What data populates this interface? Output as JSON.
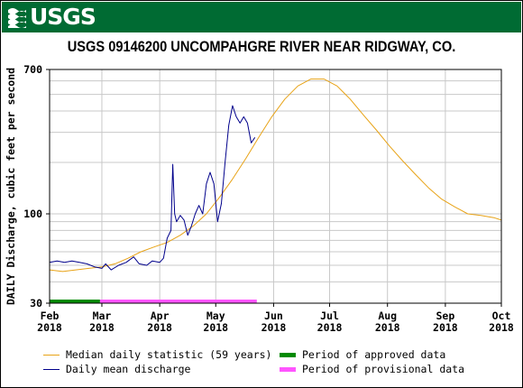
{
  "header": {
    "logo_text": "USGS"
  },
  "chart_data": {
    "type": "line",
    "title": "USGS 09146200 UNCOMPAHGRE RIVER NEAR RIDGWAY, CO.",
    "ylabel": "DAILY Discharge, cubic feet per second",
    "xlabel": "",
    "y_scale": "log",
    "ylim": [
      30,
      700
    ],
    "y_ticks": [
      {
        "value": 30,
        "label": "30"
      },
      {
        "value": 100,
        "label": "100"
      },
      {
        "value": 700,
        "label": "700"
      }
    ],
    "x_ticks": [
      {
        "date": "2018-02-01",
        "month": "Feb",
        "year": "2018"
      },
      {
        "date": "2018-03-01",
        "month": "Mar",
        "year": "2018"
      },
      {
        "date": "2018-04-01",
        "month": "Apr",
        "year": "2018"
      },
      {
        "date": "2018-05-01",
        "month": "May",
        "year": "2018"
      },
      {
        "date": "2018-06-01",
        "month": "Jun",
        "year": "2018"
      },
      {
        "date": "2018-07-01",
        "month": "Jul",
        "year": "2018"
      },
      {
        "date": "2018-08-01",
        "month": "Aug",
        "year": "2018"
      },
      {
        "date": "2018-09-01",
        "month": "Sep",
        "year": "2018"
      },
      {
        "date": "2018-10-01",
        "month": "Oct",
        "year": "2018"
      }
    ],
    "xlim": [
      "2018-02-01",
      "2018-10-01"
    ],
    "grid": true,
    "series": [
      {
        "name": "Median daily statistic (59 years)",
        "color": "#e8a317",
        "points": [
          [
            "2018-02-01",
            47
          ],
          [
            "2018-02-08",
            46
          ],
          [
            "2018-02-15",
            47
          ],
          [
            "2018-02-22",
            48
          ],
          [
            "2018-03-01",
            49
          ],
          [
            "2018-03-08",
            51
          ],
          [
            "2018-03-15",
            55
          ],
          [
            "2018-03-22",
            60
          ],
          [
            "2018-03-29",
            64
          ],
          [
            "2018-04-05",
            68
          ],
          [
            "2018-04-12",
            75
          ],
          [
            "2018-04-19",
            85
          ],
          [
            "2018-04-26",
            100
          ],
          [
            "2018-05-03",
            125
          ],
          [
            "2018-05-10",
            160
          ],
          [
            "2018-05-17",
            210
          ],
          [
            "2018-05-24",
            280
          ],
          [
            "2018-05-31",
            370
          ],
          [
            "2018-06-07",
            470
          ],
          [
            "2018-06-14",
            560
          ],
          [
            "2018-06-21",
            615
          ],
          [
            "2018-06-28",
            615
          ],
          [
            "2018-07-05",
            560
          ],
          [
            "2018-07-12",
            470
          ],
          [
            "2018-07-19",
            380
          ],
          [
            "2018-07-26",
            310
          ],
          [
            "2018-08-02",
            250
          ],
          [
            "2018-08-09",
            205
          ],
          [
            "2018-08-16",
            170
          ],
          [
            "2018-08-23",
            142
          ],
          [
            "2018-08-30",
            122
          ],
          [
            "2018-09-06",
            110
          ],
          [
            "2018-09-13",
            100
          ],
          [
            "2018-09-20",
            98
          ],
          [
            "2018-09-27",
            95
          ],
          [
            "2018-10-01",
            92
          ]
        ]
      },
      {
        "name": "Daily mean discharge",
        "color": "#00008b",
        "points": [
          [
            "2018-02-01",
            52
          ],
          [
            "2018-02-05",
            53
          ],
          [
            "2018-02-09",
            52
          ],
          [
            "2018-02-13",
            53
          ],
          [
            "2018-02-17",
            52
          ],
          [
            "2018-02-21",
            51
          ],
          [
            "2018-02-25",
            49
          ],
          [
            "2018-03-01",
            48
          ],
          [
            "2018-03-03",
            51
          ],
          [
            "2018-03-06",
            47
          ],
          [
            "2018-03-10",
            50
          ],
          [
            "2018-03-14",
            52
          ],
          [
            "2018-03-18",
            56
          ],
          [
            "2018-03-21",
            51
          ],
          [
            "2018-03-25",
            50
          ],
          [
            "2018-03-28",
            53
          ],
          [
            "2018-04-01",
            52
          ],
          [
            "2018-04-03",
            55
          ],
          [
            "2018-04-05",
            72
          ],
          [
            "2018-04-07",
            80
          ],
          [
            "2018-04-08",
            195
          ],
          [
            "2018-04-09",
            100
          ],
          [
            "2018-04-10",
            90
          ],
          [
            "2018-04-12",
            98
          ],
          [
            "2018-04-14",
            92
          ],
          [
            "2018-04-16",
            75
          ],
          [
            "2018-04-18",
            85
          ],
          [
            "2018-04-20",
            100
          ],
          [
            "2018-04-22",
            112
          ],
          [
            "2018-04-24",
            100
          ],
          [
            "2018-04-26",
            150
          ],
          [
            "2018-04-28",
            175
          ],
          [
            "2018-04-30",
            150
          ],
          [
            "2018-05-02",
            90
          ],
          [
            "2018-05-04",
            115
          ],
          [
            "2018-05-06",
            200
          ],
          [
            "2018-05-08",
            330
          ],
          [
            "2018-05-10",
            430
          ],
          [
            "2018-05-12",
            370
          ],
          [
            "2018-05-14",
            340
          ],
          [
            "2018-05-16",
            370
          ],
          [
            "2018-05-18",
            340
          ],
          [
            "2018-05-20",
            260
          ],
          [
            "2018-05-22",
            280
          ]
        ]
      }
    ],
    "periods": [
      {
        "name": "Period of approved data",
        "color": "#008a00",
        "start": "2018-02-01",
        "end": "2018-02-28"
      },
      {
        "name": "Period of provisional data",
        "color": "#ff55ff",
        "start": "2018-02-28",
        "end": "2018-05-23"
      }
    ]
  }
}
